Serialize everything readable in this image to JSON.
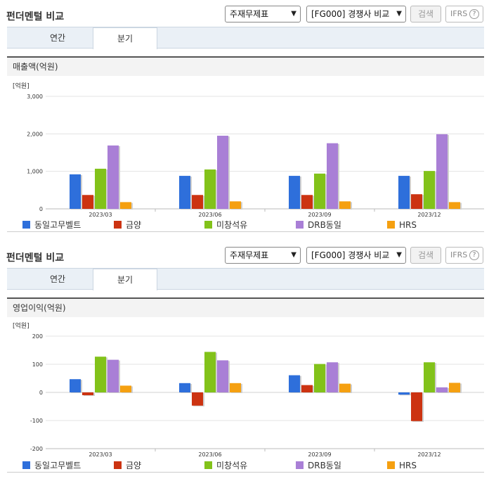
{
  "sections": [
    {
      "title": "펀더멘털 비교",
      "select1": "주재무제표",
      "select2": "[FG000] 경쟁사 비교",
      "search_label": "검색",
      "ifrs_label": "IFRS",
      "tabs": [
        "연간",
        "분기"
      ],
      "active_tab": "분기",
      "metric_label": "매출액(억원)"
    },
    {
      "title": "펀더멘털 비교",
      "select1": "주재무제표",
      "select2": "[FG000] 경쟁사 비교",
      "search_label": "검색",
      "ifrs_label": "IFRS",
      "tabs": [
        "연간",
        "분기"
      ],
      "active_tab": "분기",
      "metric_label": "영업이익(억원)"
    }
  ],
  "colors": {
    "동일고무벨트": "#2e6fdb",
    "금양": "#cc3311",
    "미창석유": "#82c21a",
    "DRB동일": "#a97fd6",
    "HRS": "#f5a011"
  },
  "chart_data": [
    {
      "type": "bar",
      "title": "매출액(억원)",
      "unit_label": "[억원]",
      "categories": [
        "2023/03",
        "2023/06",
        "2023/09",
        "2023/12"
      ],
      "ylim": [
        0,
        3000
      ],
      "yticks": [
        0,
        1000,
        2000,
        3000
      ],
      "ytick_labels": [
        "0",
        "1,000",
        "2,000",
        "3,000"
      ],
      "grid": true,
      "legend_position": "bottom",
      "series": [
        {
          "name": "동일고무벨트",
          "values": [
            920,
            880,
            880,
            880
          ]
        },
        {
          "name": "금양",
          "values": [
            370,
            370,
            370,
            390
          ]
        },
        {
          "name": "미창석유",
          "values": [
            1070,
            1050,
            940,
            1010
          ]
        },
        {
          "name": "DRB동일",
          "values": [
            1690,
            1950,
            1750,
            1990
          ]
        },
        {
          "name": "HRS",
          "values": [
            180,
            200,
            200,
            180
          ]
        }
      ]
    },
    {
      "type": "bar",
      "title": "영업이익(억원)",
      "unit_label": "[억원]",
      "categories": [
        "2023/03",
        "2023/06",
        "2023/09",
        "2023/12"
      ],
      "ylim": [
        -200,
        200
      ],
      "yticks": [
        -200,
        -100,
        0,
        100,
        200
      ],
      "ytick_labels": [
        "-200",
        "-100",
        "0",
        "100",
        "200"
      ],
      "grid": true,
      "legend_position": "bottom",
      "series": [
        {
          "name": "동일고무벨트",
          "values": [
            47,
            33,
            61,
            -8
          ]
        },
        {
          "name": "금양",
          "values": [
            -10,
            -47,
            26,
            -102
          ]
        },
        {
          "name": "미창석유",
          "values": [
            127,
            144,
            101,
            107
          ]
        },
        {
          "name": "DRB동일",
          "values": [
            116,
            114,
            107,
            18
          ]
        },
        {
          "name": "HRS",
          "values": [
            24,
            33,
            31,
            34
          ]
        }
      ]
    }
  ]
}
